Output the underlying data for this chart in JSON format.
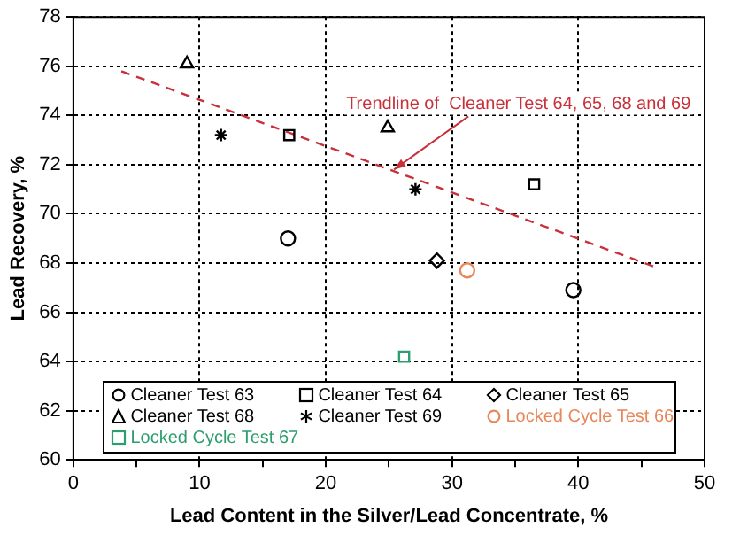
{
  "chart_data": {
    "type": "scatter",
    "xlabel": "Lead Content in the Silver/Lead Concentrate, %",
    "ylabel": "Lead Recovery, %",
    "xlim": [
      0,
      50
    ],
    "xticks": [
      0,
      {
        "value": 5,
        "label": null
      },
      10,
      {
        "value": 15,
        "label": null
      },
      20,
      {
        "value": 25,
        "label": null
      },
      30,
      {
        "value": 35,
        "label": null
      },
      40,
      {
        "value": 45,
        "label": null
      },
      50
    ],
    "ylim": [
      60,
      78
    ],
    "yticks": [
      60,
      62,
      64,
      66,
      68,
      70,
      72,
      74,
      76,
      78
    ],
    "grid": true,
    "legend": "bottom",
    "series": [
      {
        "name": "Cleaner Test 63",
        "color": "#000000",
        "marker": "circle",
        "x": [
          17.0,
          39.6
        ],
        "values": [
          69.0,
          66.9
        ]
      },
      {
        "name": "Cleaner Test 64",
        "color": "#000000",
        "marker": "square",
        "x": [
          17.1,
          36.5
        ],
        "values": [
          73.2,
          71.2
        ]
      },
      {
        "name": "Cleaner Test 65",
        "color": "#000000",
        "marker": "diamond",
        "x": [
          28.8
        ],
        "values": [
          68.1
        ]
      },
      {
        "name": "Cleaner Test 68",
        "color": "#000000",
        "marker": "triangle",
        "x": [
          9.0,
          24.9
        ],
        "values": [
          76.1,
          73.5
        ]
      },
      {
        "name": "Cleaner Test 69",
        "color": "#000000",
        "marker": "cross",
        "x": [
          11.7,
          27.1
        ],
        "values": [
          73.2,
          71.0
        ]
      },
      {
        "name": "Locked Cycle Test 66",
        "color": "#e8875a",
        "marker": "circle",
        "x": [
          31.2
        ],
        "values": [
          67.7
        ]
      },
      {
        "name": "Locked Cycle Test 67",
        "color": "#2e9e6e",
        "marker": "square",
        "x": [
          26.2
        ],
        "values": [
          64.2
        ]
      },
      {
        "type": "line",
        "color": "#c8303a",
        "line_style": "dashed",
        "marker": "none",
        "x": [
          3.8,
          46.3
        ],
        "values": [
          75.8,
          67.8
        ]
      }
    ],
    "annotations": [
      {
        "text": "Trendline of  Cleaner Test 64, 65, 68 and 69",
        "x": 25.4,
        "y": 71.8
      }
    ]
  }
}
